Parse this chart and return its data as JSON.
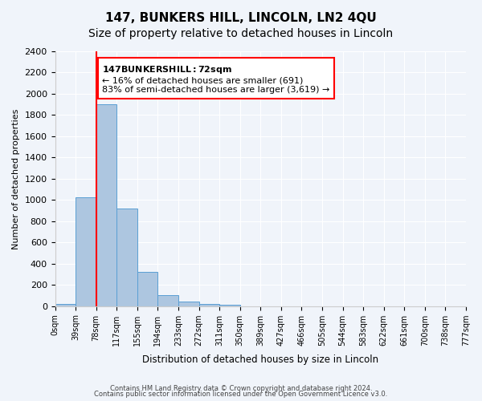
{
  "title": "147, BUNKERS HILL, LINCOLN, LN2 4QU",
  "subtitle": "Size of property relative to detached houses in Lincoln",
  "xlabel": "Distribution of detached houses by size in Lincoln",
  "ylabel": "Number of detached properties",
  "bar_values": [
    20,
    1025,
    1900,
    920,
    320,
    105,
    45,
    20,
    10,
    0,
    0,
    0,
    0,
    0,
    0,
    0,
    0,
    0,
    0
  ],
  "bin_labels": [
    "0sqm",
    "39sqm",
    "78sqm",
    "117sqm",
    "155sqm",
    "194sqm",
    "233sqm",
    "272sqm",
    "311sqm",
    "350sqm",
    "389sqm",
    "427sqm",
    "466sqm",
    "505sqm",
    "544sqm",
    "583sqm",
    "622sqm",
    "661sqm",
    "700sqm",
    "738sqm",
    "777sqm"
  ],
  "bar_color": "#adc6e0",
  "bar_edge_color": "#5a9fd4",
  "vline_x": 2,
  "vline_color": "red",
  "ylim": [
    0,
    2400
  ],
  "yticks": [
    0,
    200,
    400,
    600,
    800,
    1000,
    1200,
    1400,
    1600,
    1800,
    2000,
    2200,
    2400
  ],
  "annotation_title": "147 BUNKERS HILL: 72sqm",
  "annotation_line1": "← 16% of detached houses are smaller (691)",
  "annotation_line2": "83% of semi-detached houses are larger (3,619) →",
  "annotation_box_color": "#ffffff",
  "annotation_box_edge": "red",
  "footer1": "Contains HM Land Registry data © Crown copyright and database right 2024.",
  "footer2": "Contains public sector information licensed under the Open Government Licence v3.0.",
  "bg_color": "#f0f4fa",
  "grid_color": "#ffffff",
  "title_fontsize": 11,
  "subtitle_fontsize": 10
}
